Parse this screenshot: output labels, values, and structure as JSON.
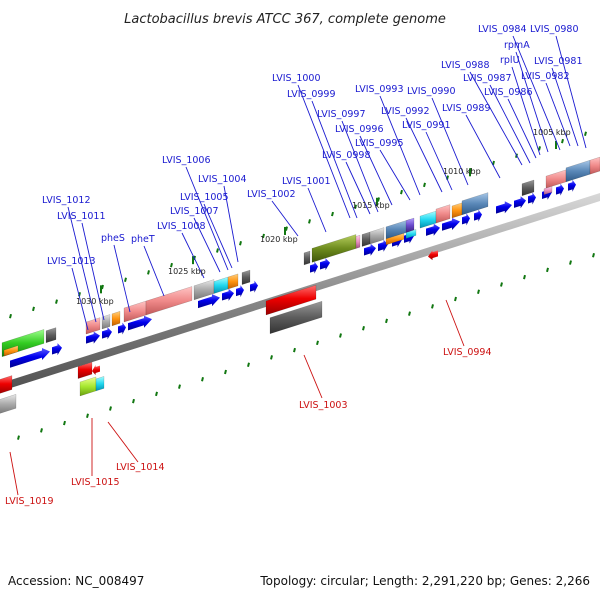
{
  "title": "Lactobacillus brevis ATCC 367, complete genome",
  "accession": "Accession: NC_008497",
  "topology": "Topology: circular; Length: 2,291,220 bp; Genes: 2,266",
  "colors": {
    "forward_cds": "#0000ee",
    "reverse_cds": "#ee0000",
    "forward_label": "#1a1ad0",
    "reverse_label": "#cc1111",
    "backbone": "#8c8c8c",
    "tick": "#117711"
  },
  "ticks": [
    {
      "label": "1005 kbp"
    },
    {
      "label": "1010 kbp"
    },
    {
      "label": "1015 kbp"
    },
    {
      "label": "1020 kbp"
    },
    {
      "label": "1025 kbp"
    },
    {
      "label": "1030 kbp"
    }
  ],
  "forward_labels": [
    {
      "text": "LVIS_0984"
    },
    {
      "text": "LVIS_0980"
    },
    {
      "text": "rpmA"
    },
    {
      "text": "rplU"
    },
    {
      "text": "LVIS_0981"
    },
    {
      "text": "LVIS_0988"
    },
    {
      "text": "LVIS_0987"
    },
    {
      "text": "LVIS_0982"
    },
    {
      "text": "LVIS_0986"
    },
    {
      "text": "LVIS_1000"
    },
    {
      "text": "LVIS_0999"
    },
    {
      "text": "LVIS_0993"
    },
    {
      "text": "LVIS_0990"
    },
    {
      "text": "LVIS_0997"
    },
    {
      "text": "LVIS_0992"
    },
    {
      "text": "LVIS_0989"
    },
    {
      "text": "LVIS_0996"
    },
    {
      "text": "LVIS_0991"
    },
    {
      "text": "LVIS_0995"
    },
    {
      "text": "LVIS_0998"
    },
    {
      "text": "LVIS_1006"
    },
    {
      "text": "LVIS_1004"
    },
    {
      "text": "LVIS_1001"
    },
    {
      "text": "LVIS_1005"
    },
    {
      "text": "LVIS_1002"
    },
    {
      "text": "LVIS_1012"
    },
    {
      "text": "LVIS_1007"
    },
    {
      "text": "LVIS_1011"
    },
    {
      "text": "LVIS_1008"
    },
    {
      "text": "pheS"
    },
    {
      "text": "pheT"
    },
    {
      "text": "LVIS_1013"
    }
  ],
  "reverse_labels": [
    {
      "text": "LVIS_0994"
    },
    {
      "text": "LVIS_1003"
    },
    {
      "text": "LVIS_1014"
    },
    {
      "text": "LVIS_1015"
    },
    {
      "text": "LVIS_1019"
    }
  ]
}
